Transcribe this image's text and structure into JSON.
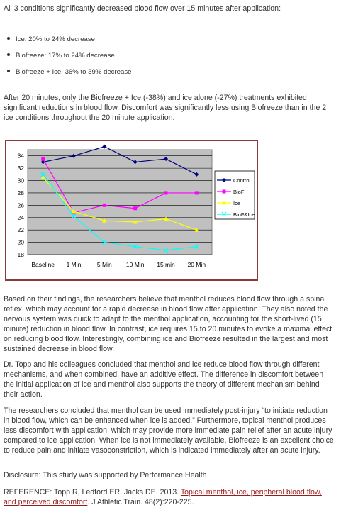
{
  "intro": "All 3 conditions significantly decreased blood flow over 15 minutes after application:",
  "bullets": [
    "Ice: 20% to 24% decrease",
    "Biofreeze: 17% to 24% decrease",
    "Biofreeze + Ice: 36% to 39% decrease"
  ],
  "para1": "After 20 minutes, only the Biofreeze + Ice (-38%) and ice alone (-27%) treatments exhibited significant reductions in blood flow. Discomfort was significantly less using Biofreeze than in the 2 ice conditions throughout the 20 minute application.",
  "para2": "Based on their findings, the researchers believe that menthol reduces blood flow through a spinal reflex, which may account for a rapid decrease in blood flow after application. They also noted the nervous system was quick to adapt to the menthol application, accounting for the short-lived (15 minute) reduction in blood flow. In contrast, ice requires 15 to 20 minutes to evoke a maximal effect on reducing blood flow. Interestingly, combining ice and Biofreeze resulted in the largest and most sustained decrease in blood flow.",
  "para3": "Dr. Topp and his colleagues concluded that menthol and ice reduce blood flow through different mechanisms, and when combined, have an additive effect. The difference in discomfort between the initial application of ice and menthol also supports the theory of different mechanism behind their action.",
  "para4": "The researchers concluded that menthol can be used immediately post-injury “to initiate reduction in blood flow, which can be enhanced when ice is added.” Furthermore, topical menthol produces less discomfort with application, which may provide more immediate pain relief after an acute injury compared to ice application. When ice is not immediately available, Biofreeze is an excellent choice to reduce pain and initiate vasoconstriction, which is indicated immediately after an acute injury.",
  "disclosure": "Disclosure: This study was supported by Performance Health",
  "reference": {
    "prefix": "REFERENCE: Topp R, Ledford ER, Jacks DE. 2013. ",
    "link_text": "Topical menthol, ice, peripheral blood flow, and perceived discomfort",
    "suffix": ". J Athletic Train. 48(2):220-225."
  },
  "chart_data": {
    "type": "line",
    "categories": [
      "Baseline",
      "1 Min",
      "5 Min",
      "10 Min",
      "15 min",
      "20 Min"
    ],
    "y_ticks": [
      "18",
      "20",
      "22",
      "24",
      "26",
      "28",
      "30",
      "32",
      "34"
    ],
    "ylim": [
      18,
      35
    ],
    "grid": true,
    "legend_position": "right",
    "plot_background": "#c0c0c0",
    "series": [
      {
        "name": "Control",
        "color": "#000080",
        "marker": "diamond",
        "values": [
          33,
          34,
          35.5,
          33,
          33.5,
          31
        ]
      },
      {
        "name": "BioF",
        "color": "#ff00ff",
        "marker": "square",
        "values": [
          33.5,
          24.8,
          26,
          25.5,
          28,
          28
        ]
      },
      {
        "name": "Ice",
        "color": "#ffff00",
        "marker": "triangle",
        "values": [
          30.5,
          25,
          23.5,
          23.3,
          23.8,
          22
        ]
      },
      {
        "name": "BioF&Ice",
        "color": "#00ffff",
        "marker": "x",
        "values": [
          31,
          24.2,
          20,
          19.3,
          18.7,
          19.3
        ]
      }
    ]
  }
}
